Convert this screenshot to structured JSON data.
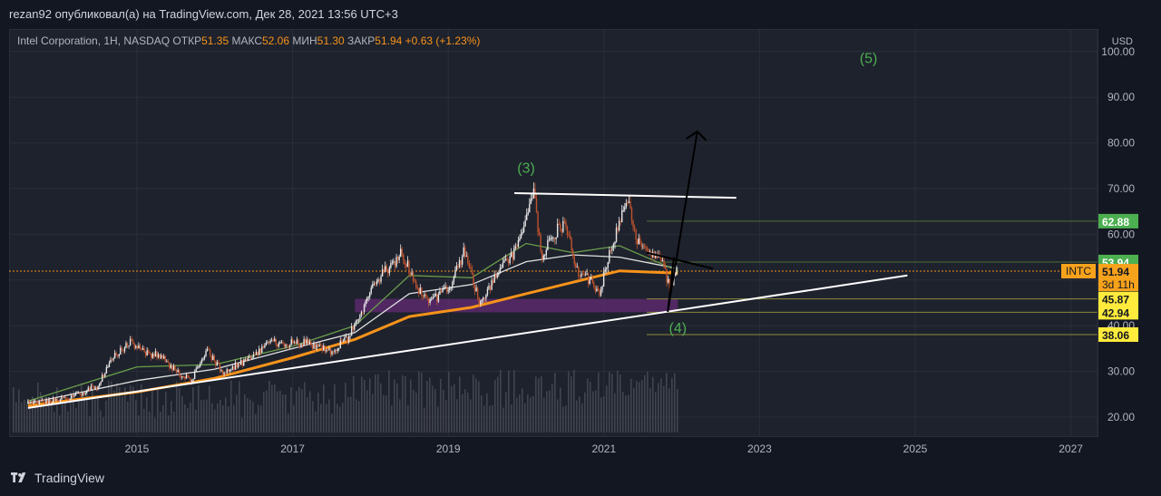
{
  "header": {
    "publisher": "rezan92 опубликовал(а) на TradingView.com, Дек 28, 2021 13:56 UTC+3"
  },
  "legend": {
    "symbol": "Intel Corporation, 1H, NASDAQ",
    "open_label": "ОТКР",
    "open_value": "51.35",
    "high_label": "МАКС",
    "high_value": "52.06",
    "low_label": "МИН",
    "low_value": "51.30",
    "close_label": "ЗАКР",
    "close_value": "51.94",
    "change": "+0.63 (+1.23%)"
  },
  "footer": {
    "brand": "TradingView"
  },
  "chart_data": {
    "type": "candlestick",
    "symbol": "INTC",
    "currency_label": "USD",
    "y_ticks": [
      "20.00",
      "30.00",
      "40.00",
      "50.00",
      "60.00",
      "70.00",
      "80.00",
      "90.00",
      "100.00"
    ],
    "x_ticks": [
      "2015",
      "2017",
      "2019",
      "2021",
      "2023",
      "2025",
      "2027"
    ],
    "ylim": [
      17,
      103
    ],
    "price_labels": [
      {
        "value": 62.88,
        "text": "62.88",
        "style": "green"
      },
      {
        "value": 53.94,
        "text": "53.94",
        "style": "green"
      },
      {
        "value": 51.94,
        "text": "51.94",
        "style": "orange",
        "sub": "3d 11h",
        "tag": "INTC"
      },
      {
        "value": 45.87,
        "text": "45.87",
        "style": "yellow"
      },
      {
        "value": 42.94,
        "text": "42.94",
        "style": "yellow"
      },
      {
        "value": 38.06,
        "text": "38.06",
        "style": "yellow"
      }
    ],
    "wave_labels": [
      {
        "text": "(3)",
        "x": 2020.0,
        "y": 73.5
      },
      {
        "text": "(4)",
        "x": 2021.95,
        "y": 38.5
      },
      {
        "text": "(5)",
        "x": 2024.4,
        "y": 97.5
      }
    ],
    "price_path": [
      [
        2013.6,
        23.0
      ],
      [
        2013.9,
        23.5
      ],
      [
        2014.2,
        24.5
      ],
      [
        2014.5,
        27.0
      ],
      [
        2014.7,
        33.0
      ],
      [
        2014.9,
        36.5
      ],
      [
        2015.1,
        34.0
      ],
      [
        2015.3,
        33.5
      ],
      [
        2015.5,
        30.0
      ],
      [
        2015.7,
        28.0
      ],
      [
        2015.9,
        34.5
      ],
      [
        2016.1,
        30.0
      ],
      [
        2016.3,
        31.5
      ],
      [
        2016.5,
        33.0
      ],
      [
        2016.7,
        36.5
      ],
      [
        2016.9,
        36.0
      ],
      [
        2017.1,
        36.5
      ],
      [
        2017.3,
        35.5
      ],
      [
        2017.5,
        34.5
      ],
      [
        2017.7,
        37.0
      ],
      [
        2017.9,
        44.0
      ],
      [
        2018.0,
        48.0
      ],
      [
        2018.2,
        52.0
      ],
      [
        2018.4,
        56.0
      ],
      [
        2018.6,
        48.0
      ],
      [
        2018.8,
        45.5
      ],
      [
        2019.0,
        48.0
      ],
      [
        2019.2,
        56.0
      ],
      [
        2019.4,
        45.5
      ],
      [
        2019.6,
        50.0
      ],
      [
        2019.8,
        55.0
      ],
      [
        2019.95,
        59.5
      ],
      [
        2020.1,
        68.5
      ],
      [
        2020.2,
        55.0
      ],
      [
        2020.35,
        60.0
      ],
      [
        2020.5,
        62.5
      ],
      [
        2020.65,
        52.0
      ],
      [
        2020.8,
        50.0
      ],
      [
        2020.95,
        46.5
      ],
      [
        2021.05,
        55.0
      ],
      [
        2021.15,
        60.0
      ],
      [
        2021.3,
        67.0
      ],
      [
        2021.45,
        58.0
      ],
      [
        2021.6,
        56.0
      ],
      [
        2021.75,
        53.5
      ],
      [
        2021.85,
        48.5
      ],
      [
        2021.95,
        51.94
      ]
    ],
    "moving_averages": [
      {
        "name": "orange",
        "color": "#f7931a",
        "points": [
          [
            2013.6,
            22.5
          ],
          [
            2015.0,
            25.5
          ],
          [
            2016.0,
            28.5
          ],
          [
            2017.0,
            33.0
          ],
          [
            2017.8,
            37.0
          ],
          [
            2018.5,
            42.0
          ],
          [
            2019.3,
            44.0
          ],
          [
            2020.0,
            47.0
          ],
          [
            2020.6,
            49.5
          ],
          [
            2021.2,
            52.0
          ],
          [
            2021.95,
            51.5
          ]
        ]
      },
      {
        "name": "white",
        "color": "#e0e0e0",
        "points": [
          [
            2013.6,
            23.0
          ],
          [
            2015.0,
            28.0
          ],
          [
            2016.0,
            30.5
          ],
          [
            2017.0,
            35.0
          ],
          [
            2017.8,
            38.5
          ],
          [
            2018.5,
            47.0
          ],
          [
            2019.3,
            49.0
          ],
          [
            2020.0,
            54.0
          ],
          [
            2020.6,
            55.5
          ],
          [
            2021.2,
            55.0
          ],
          [
            2021.95,
            52.5
          ]
        ]
      },
      {
        "name": "green",
        "color": "#6a9f4a",
        "points": [
          [
            2013.6,
            23.5
          ],
          [
            2015.0,
            31.0
          ],
          [
            2016.0,
            31.5
          ],
          [
            2017.0,
            35.5
          ],
          [
            2017.8,
            40.0
          ],
          [
            2018.5,
            51.0
          ],
          [
            2019.3,
            50.5
          ],
          [
            2020.0,
            58.0
          ],
          [
            2020.6,
            56.0
          ],
          [
            2021.2,
            57.5
          ],
          [
            2021.95,
            52.0
          ]
        ]
      }
    ],
    "trendlines": [
      {
        "color": "#ffffff",
        "points": [
          [
            2013.6,
            22.0
          ],
          [
            2024.9,
            51.0
          ]
        ]
      },
      {
        "color": "#ffffff",
        "points": [
          [
            2019.85,
            69.0
          ],
          [
            2022.7,
            68.0
          ]
        ]
      },
      {
        "color": "#000000",
        "points": [
          [
            2021.55,
            56.0
          ],
          [
            2022.4,
            52.5
          ]
        ]
      },
      {
        "color": "#000000",
        "points": [
          [
            2021.9,
            55.0
          ],
          [
            2021.82,
            43.0
          ],
          [
            2022.2,
            82.5
          ]
        ]
      }
    ],
    "zone": {
      "from": 42.94,
      "to": 45.87,
      "x_start": 2017.8,
      "x_end": 2021.95,
      "color": "#7b2d8e"
    }
  }
}
